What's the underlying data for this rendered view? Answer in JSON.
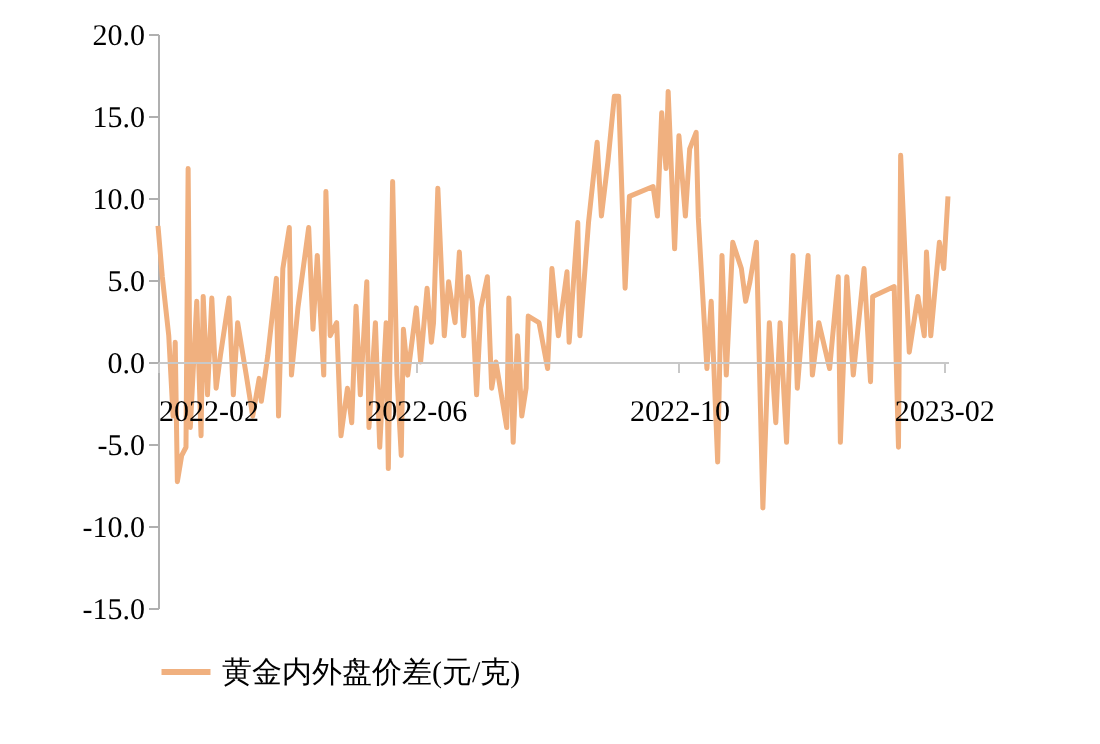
{
  "chart_data": {
    "type": "line",
    "legend": "bottom",
    "grid": false,
    "marker": "none",
    "line_style": "solid",
    "ylim": [
      -15,
      20
    ],
    "yticks": [
      {
        "value": -15,
        "label": "-15.0"
      },
      {
        "value": -10,
        "label": "-10.0"
      },
      {
        "value": -5,
        "label": "-5.0"
      },
      {
        "value": 0,
        "label": "0.0"
      },
      {
        "value": 5,
        "label": "5.0"
      },
      {
        "value": 10,
        "label": "10.0"
      },
      {
        "value": 15,
        "label": "15.0"
      },
      {
        "value": 20,
        "label": "20.0"
      }
    ],
    "xlim": [
      "2022-02-01",
      "2023-02-03"
    ],
    "xticks": [
      "2022-02",
      "2022-06",
      "2022-10",
      "2023-02"
    ],
    "x": [
      "2022-02-01",
      "2022-02-03",
      "2022-02-06",
      "2022-02-08",
      "2022-02-09",
      "2022-02-10",
      "2022-02-12",
      "2022-02-14",
      "2022-02-15",
      "2022-02-16",
      "2022-02-19",
      "2022-02-21",
      "2022-02-22",
      "2022-02-24",
      "2022-02-26",
      "2022-02-28",
      "2022-03-02",
      "2022-03-06",
      "2022-03-08",
      "2022-03-10",
      "2022-03-14",
      "2022-03-17",
      "2022-03-20",
      "2022-03-21",
      "2022-03-24",
      "2022-03-28",
      "2022-03-29",
      "2022-03-31",
      "2022-04-03",
      "2022-04-04",
      "2022-04-07",
      "2022-04-12",
      "2022-04-14",
      "2022-04-16",
      "2022-04-19",
      "2022-04-20",
      "2022-04-22",
      "2022-04-25",
      "2022-04-27",
      "2022-04-30",
      "2022-05-02",
      "2022-05-04",
      "2022-05-06",
      "2022-05-09",
      "2022-05-10",
      "2022-05-13",
      "2022-05-15",
      "2022-05-18",
      "2022-05-19",
      "2022-05-21",
      "2022-05-23",
      "2022-05-25",
      "2022-05-26",
      "2022-05-28",
      "2022-06-01",
      "2022-06-03",
      "2022-06-06",
      "2022-06-08",
      "2022-06-09",
      "2022-06-11",
      "2022-06-14",
      "2022-06-16",
      "2022-06-19",
      "2022-06-21",
      "2022-06-23",
      "2022-06-25",
      "2022-06-27",
      "2022-06-29",
      "2022-07-01",
      "2022-07-04",
      "2022-07-06",
      "2022-07-08",
      "2022-07-11",
      "2022-07-13",
      "2022-07-14",
      "2022-07-16",
      "2022-07-18",
      "2022-07-20",
      "2022-07-22",
      "2022-07-23",
      "2022-07-28",
      "2022-08-01",
      "2022-08-03",
      "2022-08-06",
      "2022-08-10",
      "2022-08-11",
      "2022-08-15",
      "2022-08-16",
      "2022-08-20",
      "2022-08-24",
      "2022-08-26",
      "2022-08-29",
      "2022-09-01",
      "2022-09-03",
      "2022-09-06",
      "2022-09-08",
      "2022-09-19",
      "2022-09-21",
      "2022-09-23",
      "2022-09-25",
      "2022-09-26",
      "2022-09-29",
      "2022-10-01",
      "2022-10-04",
      "2022-10-06",
      "2022-10-09",
      "2022-10-10",
      "2022-10-14",
      "2022-10-16",
      "2022-10-19",
      "2022-10-21",
      "2022-10-23",
      "2022-10-26",
      "2022-10-30",
      "2022-11-01",
      "2022-11-03",
      "2022-11-06",
      "2022-11-09",
      "2022-11-12",
      "2022-11-15",
      "2022-11-17",
      "2022-11-20",
      "2022-11-23",
      "2022-11-25",
      "2022-11-30",
      "2022-12-02",
      "2022-12-05",
      "2022-12-10",
      "2022-12-14",
      "2022-12-15",
      "2022-12-18",
      "2022-12-21",
      "2022-12-26",
      "2022-12-29",
      "2022-12-30",
      "2023-01-09",
      "2023-01-11",
      "2023-01-12",
      "2023-01-16",
      "2023-01-20",
      "2023-01-23",
      "2023-01-24",
      "2023-01-26",
      "2023-01-30",
      "2023-02-01",
      "2023-02-03"
    ],
    "series": [
      {
        "name": "黄金内外盘价差(元/克)",
        "color": "#f0b07f",
        "values": [
          8.3,
          5.2,
          1.6,
          -3.3,
          1.2,
          -7.3,
          -5.7,
          -5.2,
          11.8,
          -4.0,
          3.7,
          -4.5,
          4.0,
          -2.0,
          3.9,
          -1.6,
          0.4,
          3.9,
          -2.0,
          2.4,
          -0.8,
          -3.3,
          -1.0,
          -2.4,
          0.4,
          5.1,
          -3.3,
          5.7,
          8.2,
          -0.8,
          3.3,
          8.2,
          2.0,
          6.5,
          -0.8,
          10.4,
          1.6,
          2.4,
          -4.5,
          -1.6,
          -3.7,
          3.4,
          -2.0,
          4.9,
          -4.0,
          2.4,
          -5.2,
          2.4,
          -6.5,
          11.0,
          -0.8,
          -5.7,
          2.0,
          -0.8,
          3.3,
          0.0,
          4.5,
          1.2,
          2.4,
          10.6,
          1.6,
          4.9,
          2.4,
          6.7,
          1.6,
          5.2,
          3.7,
          -2.0,
          3.3,
          5.2,
          -1.6,
          0.0,
          -2.4,
          -4.0,
          3.9,
          -4.9,
          1.6,
          -3.3,
          -1.6,
          2.8,
          2.4,
          -0.4,
          5.7,
          1.6,
          5.5,
          1.2,
          8.5,
          1.6,
          8.5,
          13.4,
          8.9,
          12.2,
          16.2,
          16.2,
          4.5,
          10.1,
          10.7,
          8.9,
          15.2,
          11.8,
          16.5,
          6.9,
          13.8,
          8.9,
          13.0,
          14.0,
          8.8,
          -0.4,
          3.7,
          -6.1,
          6.5,
          -0.8,
          7.3,
          5.7,
          3.7,
          4.9,
          7.3,
          -8.9,
          2.4,
          -3.7,
          2.4,
          -4.9,
          6.5,
          -1.6,
          6.5,
          -0.8,
          2.4,
          -0.4,
          5.2,
          -4.9,
          5.2,
          -0.8,
          5.7,
          -1.2,
          4.0,
          4.6,
          -5.2,
          12.6,
          0.6,
          4.0,
          1.6,
          6.7,
          1.6,
          7.3,
          5.7,
          10.1
        ]
      }
    ]
  }
}
